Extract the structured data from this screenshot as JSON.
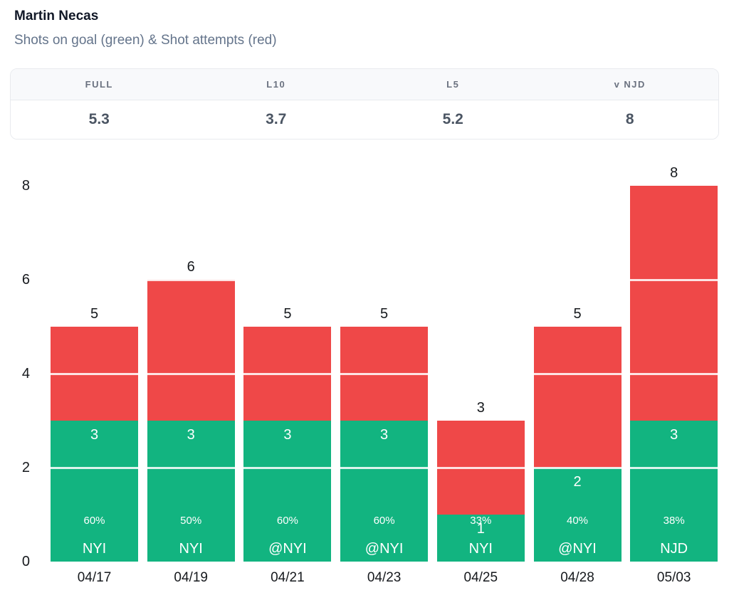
{
  "header": {
    "title": "Martin Necas",
    "subtitle": "Shots on goal (green) & Shot attempts (red)"
  },
  "stats": {
    "columns": [
      {
        "label": "FULL",
        "value": "5.3"
      },
      {
        "label": "L10",
        "value": "3.7"
      },
      {
        "label": "L5",
        "value": "5.2"
      },
      {
        "label": "v NJD",
        "value": "8"
      }
    ]
  },
  "chart_data": {
    "type": "bar",
    "stacked": true,
    "title": "Martin Necas — Shots on goal (green) & Shot attempts (red)",
    "categories": [
      "04/17",
      "04/19",
      "04/21",
      "04/23",
      "04/25",
      "04/28",
      "05/03"
    ],
    "series": [
      {
        "name": "Shots on goal",
        "color": "#12b480",
        "values": [
          3,
          3,
          3,
          3,
          1,
          2,
          3
        ]
      },
      {
        "name": "Shot attempts",
        "color": "#ef4848",
        "values": [
          5,
          6,
          5,
          5,
          3,
          5,
          8
        ]
      }
    ],
    "bar_labels": {
      "sog_pct": [
        "60%",
        "50%",
        "60%",
        "60%",
        "33%",
        "40%",
        "38%"
      ],
      "opponent": [
        "NYI",
        "NYI",
        "@NYI",
        "@NYI",
        "NYI",
        "@NYI",
        "NJD"
      ]
    },
    "xlabel": "",
    "ylabel": "",
    "ylim": [
      0,
      8
    ],
    "yticks": [
      0,
      2,
      4,
      6,
      8
    ],
    "grid": "white overlay lines on bars at even values",
    "legend_position": "none",
    "colors": {
      "green": "#12b480",
      "red": "#ef4848"
    }
  }
}
